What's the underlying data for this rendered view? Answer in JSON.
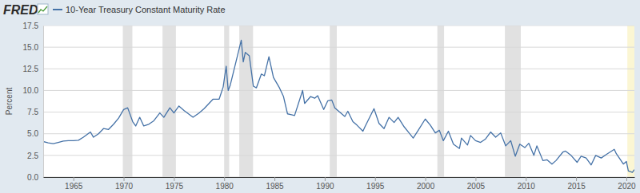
{
  "chart_data": {
    "type": "line",
    "logo": "FRED",
    "y_label": "Percent",
    "x": [
      1962.0,
      1962.5,
      1963.0,
      1963.5,
      1964.0,
      1964.5,
      1965.0,
      1965.5,
      1966.0,
      1966.7,
      1967.0,
      1967.5,
      1968.0,
      1968.5,
      1969.0,
      1969.5,
      1970.0,
      1970.4,
      1970.9,
      1971.2,
      1971.6,
      1972.0,
      1972.5,
      1973.0,
      1973.6,
      1974.0,
      1974.6,
      1975.0,
      1975.5,
      1976.0,
      1976.9,
      1977.5,
      1978.0,
      1978.9,
      1979.5,
      1979.9,
      1980.2,
      1980.4,
      1980.6,
      1981.0,
      1981.7,
      1981.9,
      1982.1,
      1982.5,
      1982.9,
      1983.2,
      1983.7,
      1984.0,
      1984.45,
      1984.9,
      1985.5,
      1985.9,
      1986.3,
      1986.7,
      1987.0,
      1987.8,
      1988.0,
      1988.6,
      1989.0,
      1989.3,
      1989.9,
      1990.3,
      1990.7,
      1991.0,
      1991.9,
      1992.0,
      1992.3,
      1992.8,
      1993.2,
      1993.8,
      1994.0,
      1994.9,
      1995.4,
      1995.9,
      1996.4,
      1996.9,
      1997.3,
      1997.9,
      1998.8,
      1999.3,
      2000.0,
      2000.5,
      2001.0,
      2001.4,
      2001.8,
      2002.3,
      2002.8,
      2003.4,
      2003.6,
      2004.2,
      2004.5,
      2005.0,
      2005.5,
      2006.0,
      2006.5,
      2007.0,
      2007.5,
      2008.0,
      2008.5,
      2008.95,
      2009.4,
      2009.9,
      2010.3,
      2010.8,
      2011.1,
      2011.7,
      2012.1,
      2012.6,
      2013.0,
      2013.7,
      2013.95,
      2014.5,
      2015.1,
      2015.5,
      2016.0,
      2016.5,
      2016.95,
      2017.5,
      2018.0,
      2018.8,
      2019.0,
      2019.7,
      2020.0,
      2020.2,
      2020.6,
      2020.8
    ],
    "series": [
      {
        "name": "10-Year Treasury Constant Maturity Rate",
        "color": "#4572a7",
        "values": [
          4.1,
          3.95,
          3.85,
          4.0,
          4.15,
          4.2,
          4.2,
          4.25,
          4.6,
          5.2,
          4.6,
          5.0,
          5.6,
          5.5,
          6.1,
          6.8,
          7.8,
          8.0,
          6.4,
          5.9,
          6.9,
          5.9,
          6.1,
          6.5,
          7.4,
          6.9,
          8.0,
          7.4,
          8.2,
          7.7,
          6.9,
          7.4,
          7.9,
          9.0,
          9.0,
          10.4,
          12.8,
          10.0,
          10.6,
          12.5,
          15.8,
          13.3,
          14.4,
          14.0,
          10.5,
          10.3,
          11.9,
          11.7,
          13.9,
          11.5,
          10.3,
          9.3,
          7.3,
          7.2,
          7.1,
          10.0,
          8.5,
          9.3,
          9.1,
          9.4,
          7.8,
          8.8,
          8.9,
          8.0,
          7.1,
          7.0,
          7.6,
          6.4,
          6.0,
          5.3,
          5.8,
          7.9,
          6.2,
          5.6,
          6.9,
          6.3,
          6.9,
          5.8,
          4.5,
          5.4,
          6.7,
          6.0,
          5.1,
          5.4,
          4.2,
          5.3,
          3.8,
          3.3,
          4.5,
          3.7,
          4.8,
          4.2,
          4.0,
          4.4,
          5.2,
          4.6,
          5.1,
          3.6,
          4.2,
          2.4,
          3.8,
          3.4,
          3.9,
          2.5,
          3.6,
          1.9,
          2.0,
          1.5,
          1.9,
          2.9,
          3.0,
          2.5,
          1.7,
          2.4,
          2.2,
          1.4,
          2.5,
          2.2,
          2.6,
          3.2,
          2.7,
          1.5,
          1.8,
          0.7,
          0.55,
          0.85
        ]
      }
    ],
    "recessions": [
      [
        1969.92,
        1970.87
      ],
      [
        1973.87,
        1975.2
      ],
      [
        1980.0,
        1980.5
      ],
      [
        1981.5,
        1982.87
      ],
      [
        1990.5,
        1991.2
      ],
      [
        2001.2,
        2001.87
      ],
      [
        2007.92,
        2009.5
      ]
    ],
    "highlight": [
      2020.1,
      2020.8
    ],
    "xlim": [
      1962,
      2020.8
    ],
    "xticks": [
      1965,
      1970,
      1975,
      1980,
      1985,
      1990,
      1995,
      2000,
      2005,
      2010,
      2015,
      2020
    ],
    "ylim": [
      0,
      17.5
    ],
    "yticks": [
      {
        "value": 0,
        "label": "0.0"
      },
      2.5,
      {
        "value": 5,
        "label": "5.0"
      },
      7.5,
      {
        "value": 10,
        "label": "10.0"
      },
      12.5,
      {
        "value": 15,
        "label": "15.0"
      },
      17.5
    ],
    "grid": true
  }
}
